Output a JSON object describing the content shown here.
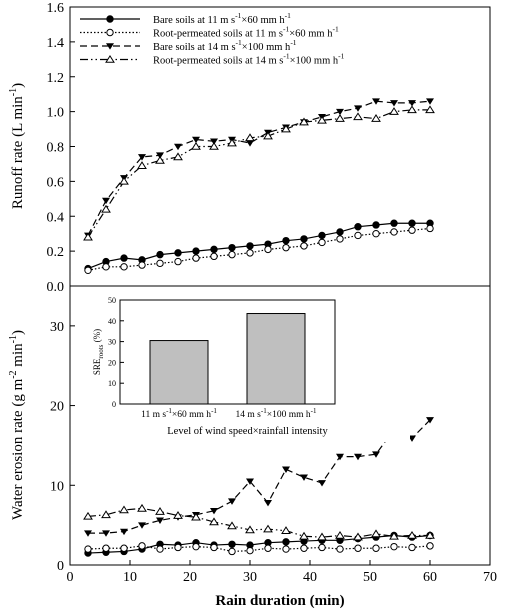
{
  "chart_data": [
    {
      "type": "line",
      "panel": "top",
      "ylabel": "Runoff rate (L min",
      "ylabel_sup": "-1",
      "ylabel_close": ")",
      "ylim": [
        0,
        1.6
      ],
      "xlim": [
        0,
        70
      ],
      "y_ticks": [
        "0.0",
        "0.2",
        "0.4",
        "0.6",
        "0.8",
        "1.0",
        "1.2",
        "1.4",
        "1.6"
      ],
      "legend": [
        {
          "text": "Bare soils at 11 m s",
          "sup1": "-1",
          "mid": "×60 mm h",
          "sup2": "-1"
        },
        {
          "text": "Root-permeated soils at 11 m s",
          "sup1": "-1",
          "mid": "×60 mm h",
          "sup2": "-1"
        },
        {
          "text": "Bare soils at 14 m s",
          "sup1": "-1",
          "mid": "×100 mm h",
          "sup2": "-1"
        },
        {
          "text": "Root-permeated soils at 14 m s",
          "sup1": "-1",
          "mid": "×100 mm h",
          "sup2": "-1"
        }
      ],
      "legend_position": "top-left",
      "series": [
        {
          "style": "solid",
          "marker": "filled-circle",
          "x": [
            3,
            6,
            9,
            12,
            15,
            18,
            21,
            24,
            27,
            30,
            33,
            36,
            39,
            42,
            45,
            48,
            51,
            54,
            57,
            60
          ],
          "values": [
            0.1,
            0.14,
            0.16,
            0.15,
            0.18,
            0.19,
            0.2,
            0.21,
            0.22,
            0.23,
            0.24,
            0.26,
            0.27,
            0.29,
            0.31,
            0.34,
            0.35,
            0.36,
            0.36,
            0.36
          ]
        },
        {
          "style": "dotted",
          "marker": "open-circle",
          "x": [
            3,
            6,
            9,
            12,
            15,
            18,
            21,
            24,
            27,
            30,
            33,
            36,
            39,
            42,
            45,
            48,
            51,
            54,
            57,
            60
          ],
          "values": [
            0.09,
            0.11,
            0.11,
            0.12,
            0.13,
            0.14,
            0.16,
            0.17,
            0.18,
            0.19,
            0.21,
            0.22,
            0.23,
            0.25,
            0.27,
            0.29,
            0.3,
            0.31,
            0.32,
            0.33
          ]
        },
        {
          "style": "dashed",
          "marker": "filled-triangle-down",
          "x": [
            3,
            6,
            9,
            12,
            15,
            18,
            21,
            24,
            27,
            30,
            33,
            36,
            39,
            42,
            45,
            48,
            51,
            54,
            57,
            60
          ],
          "values": [
            0.29,
            0.49,
            0.62,
            0.74,
            0.75,
            0.8,
            0.84,
            0.83,
            0.84,
            0.82,
            0.88,
            0.91,
            0.94,
            0.97,
            1.0,
            1.02,
            1.06,
            1.05,
            1.05,
            1.06
          ]
        },
        {
          "style": "dash-dot-dot",
          "marker": "open-triangle-up",
          "x": [
            3,
            6,
            9,
            12,
            15,
            18,
            21,
            24,
            27,
            30,
            33,
            36,
            39,
            42,
            45,
            48,
            51,
            54,
            57,
            60
          ],
          "values": [
            0.28,
            0.44,
            0.6,
            0.69,
            0.72,
            0.74,
            0.8,
            0.8,
            0.82,
            0.85,
            0.86,
            0.9,
            0.94,
            0.95,
            0.96,
            0.97,
            0.96,
            1.0,
            1.01,
            1.01
          ]
        }
      ]
    },
    {
      "type": "line",
      "panel": "bottom",
      "ylabel": "Water erosion rate (g m",
      "ylabel_sup1": "-2",
      "ylabel_mid": " min",
      "ylabel_sup2": "-1",
      "ylabel_close": ")",
      "xlabel": "Rain duration (min)",
      "ylim": [
        0,
        35
      ],
      "xlim": [
        0,
        70
      ],
      "y_ticks": [
        "0",
        "10",
        "20",
        "30"
      ],
      "x_ticks": [
        "0",
        "10",
        "20",
        "30",
        "40",
        "50",
        "60",
        "70"
      ],
      "series": [
        {
          "style": "solid",
          "marker": "filled-circle",
          "x": [
            3,
            6,
            9,
            12,
            15,
            18,
            21,
            24,
            27,
            30,
            33,
            36,
            39,
            42,
            45,
            48,
            51,
            54,
            57,
            60
          ],
          "values": [
            1.5,
            1.6,
            1.7,
            2.0,
            2.6,
            2.5,
            2.8,
            2.5,
            2.6,
            2.5,
            2.8,
            2.9,
            3.0,
            3.1,
            3.1,
            3.3,
            3.5,
            3.7,
            3.5,
            3.7
          ]
        },
        {
          "style": "dotted",
          "marker": "open-circle",
          "x": [
            3,
            6,
            9,
            12,
            15,
            18,
            21,
            24,
            27,
            30,
            33,
            36,
            39,
            42,
            45,
            48,
            51,
            54,
            57,
            60
          ],
          "values": [
            2.0,
            2.1,
            2.1,
            2.4,
            2.0,
            2.2,
            2.3,
            2.2,
            1.7,
            1.8,
            2.1,
            2.0,
            2.1,
            2.2,
            2.0,
            2.1,
            2.1,
            2.3,
            2.2,
            2.4
          ]
        },
        {
          "style": "dashed",
          "marker": "filled-triangle-down",
          "x": [
            3,
            6,
            9,
            12,
            15,
            18,
            21,
            24,
            27,
            30,
            33,
            36,
            39,
            42,
            45,
            48,
            51,
            54,
            57,
            60
          ],
          "values": [
            4.0,
            4.0,
            4.2,
            5.0,
            5.6,
            6.0,
            6.3,
            6.8,
            8.0,
            10.5,
            7.8,
            12.0,
            11.0,
            10.3,
            13.6,
            13.6,
            13.9,
            17.0,
            15.9,
            18.2
          ]
        },
        {
          "style": "dash-dot-dot",
          "marker": "open-triangle-up",
          "x": [
            3,
            6,
            9,
            12,
            15,
            18,
            21,
            24,
            27,
            30,
            33,
            36,
            39,
            42,
            45,
            48,
            51,
            54,
            57,
            60
          ],
          "values": [
            6.1,
            6.3,
            6.9,
            7.1,
            6.7,
            6.2,
            6.0,
            5.4,
            4.9,
            4.4,
            4.5,
            4.3,
            3.6,
            3.5,
            3.7,
            3.5,
            3.9,
            3.6,
            3.7,
            3.7
          ]
        }
      ]
    },
    {
      "type": "bar",
      "panel": "inset",
      "ylabel": "SRE",
      "ylabel_sub": "roots",
      "ylabel_unit": " (%)",
      "xlabel": "Level of wind speed×rainfall intensity",
      "ylim": [
        0,
        50
      ],
      "y_ticks": [
        "0",
        "10",
        "20",
        "30",
        "40",
        "50"
      ],
      "categories": [
        {
          "text": "11 m s",
          "sup1": "-1",
          "mid": "×60 mm h",
          "sup2": "-1"
        },
        {
          "text": "14 m s",
          "sup1": "-1",
          "mid": "×100 mm h",
          "sup2": "-1"
        }
      ],
      "values": [
        30.5,
        43.5
      ],
      "bar_color": "#bfbfbf"
    }
  ]
}
